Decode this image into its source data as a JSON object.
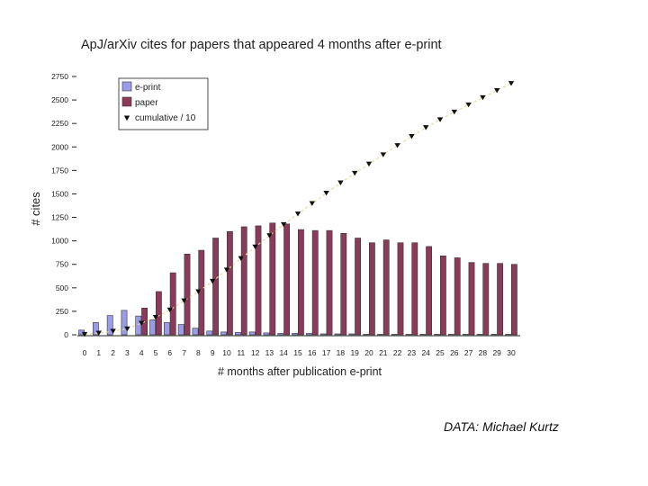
{
  "credit": "DATA: Michael Kurtz",
  "chart_data": {
    "type": "bar",
    "title": "ApJ/arXiv cites for papers that appeared 4 months after e-print",
    "xlabel": "# months after publication e-print",
    "ylabel": "# cites",
    "ylim": [
      0,
      2750
    ],
    "yticks": [
      0,
      250,
      500,
      750,
      1000,
      1250,
      1500,
      1750,
      2000,
      2250,
      2500,
      2750
    ],
    "grid": false,
    "legend_position": "top-left",
    "categories": [
      "0",
      "1",
      "2",
      "3",
      "4",
      "5",
      "6",
      "7",
      "8",
      "9",
      "10",
      "11",
      "12",
      "13",
      "14",
      "15",
      "16",
      "17",
      "18",
      "19",
      "20",
      "21",
      "22",
      "23",
      "24",
      "25",
      "26",
      "27",
      "28",
      "29",
      "30"
    ],
    "series": [
      {
        "name": "e-print",
        "type": "bar",
        "color": "#9b9bea",
        "values": [
          50,
          130,
          205,
          260,
          200,
          160,
          130,
          110,
          70,
          40,
          30,
          25,
          30,
          20,
          15,
          15,
          15,
          10,
          10,
          10,
          5,
          5,
          5,
          5,
          5,
          5,
          5,
          5,
          5,
          5,
          5
        ]
      },
      {
        "name": "paper",
        "type": "bar",
        "color": "#8c3a5a",
        "values": [
          0,
          0,
          0,
          0,
          285,
          460,
          660,
          860,
          900,
          1030,
          1100,
          1150,
          1160,
          1190,
          1180,
          1120,
          1110,
          1110,
          1080,
          1030,
          980,
          1010,
          980,
          980,
          940,
          840,
          820,
          770,
          760,
          760,
          750
        ]
      },
      {
        "name": "cumulative / 10",
        "type": "scatter",
        "marker": "triangle-down",
        "values": [
          5,
          18,
          38,
          64,
          124,
          186,
          265,
          362,
          459,
          570,
          690,
          812,
          936,
          1056,
          1174,
          1287,
          1398,
          1508,
          1618,
          1720,
          1818,
          1917,
          2015,
          2112,
          2206,
          2290,
          2372,
          2449,
          2525,
          2601,
          2676
        ]
      }
    ]
  }
}
